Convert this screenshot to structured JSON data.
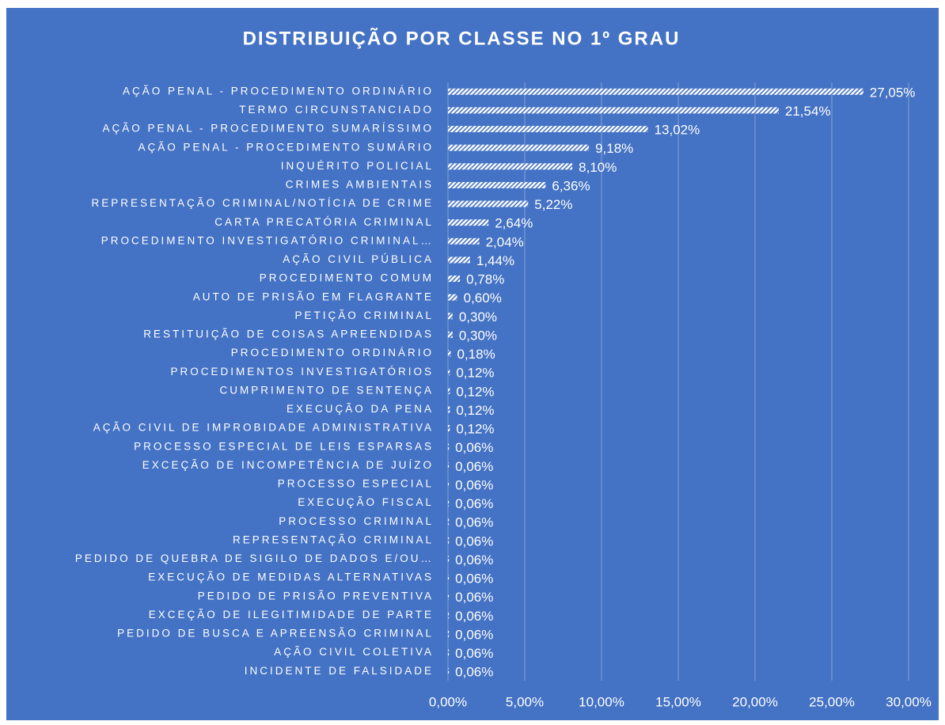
{
  "chart_data": {
    "type": "barh",
    "title": "DISTRIBUIÇÃO POR CLASSE NO 1º GRAU",
    "categories": [
      "AÇÃO PENAL - PROCEDIMENTO ORDINÁRIO",
      "TERMO CIRCUNSTANCIADO",
      "AÇÃO PENAL - PROCEDIMENTO SUMARÍSSIMO",
      "AÇÃO PENAL - PROCEDIMENTO SUMÁRIO",
      "INQUÉRITO POLICIAL",
      "CRIMES AMBIENTAIS",
      "REPRESENTAÇÃO CRIMINAL/NOTÍCIA DE CRIME",
      "CARTA PRECATÓRIA CRIMINAL",
      "PROCEDIMENTO INVESTIGATÓRIO CRIMINAL…",
      "AÇÃO CIVIL PÚBLICA",
      "PROCEDIMENTO COMUM",
      "AUTO DE PRISÃO EM FLAGRANTE",
      "PETIÇÃO CRIMINAL",
      "RESTITUIÇÃO DE COISAS APREENDIDAS",
      "PROCEDIMENTO ORDINÁRIO",
      "PROCEDIMENTOS INVESTIGATÓRIOS",
      "CUMPRIMENTO DE SENTENÇA",
      "EXECUÇÃO DA PENA",
      "AÇÃO CIVIL DE IMPROBIDADE ADMINISTRATIVA",
      "PROCESSO ESPECIAL DE LEIS ESPARSAS",
      "EXCEÇÃO DE INCOMPETÊNCIA DE JUÍZO",
      "PROCESSO ESPECIAL",
      "EXECUÇÃO FISCAL",
      "PROCESSO CRIMINAL",
      "REPRESENTAÇÃO CRIMINAL",
      "PEDIDO DE QUEBRA DE SIGILO DE DADOS E/OU…",
      "EXECUÇÃO DE MEDIDAS ALTERNATIVAS",
      "PEDIDO DE PRISÃO PREVENTIVA",
      "EXCEÇÃO DE ILEGITIMIDADE DE PARTE",
      "PEDIDO DE BUSCA E APREENSÃO CRIMINAL",
      "AÇÃO CIVIL COLETIVA",
      "INCIDENTE DE FALSIDADE"
    ],
    "values": [
      27.05,
      21.54,
      13.02,
      9.18,
      8.1,
      6.36,
      5.22,
      2.64,
      2.04,
      1.44,
      0.78,
      0.6,
      0.3,
      0.3,
      0.18,
      0.12,
      0.12,
      0.12,
      0.12,
      0.06,
      0.06,
      0.06,
      0.06,
      0.06,
      0.06,
      0.06,
      0.06,
      0.06,
      0.06,
      0.06,
      0.06,
      0.06
    ],
    "value_labels": [
      "27,05%",
      "21,54%",
      "13,02%",
      "9,18%",
      "8,10%",
      "6,36%",
      "5,22%",
      "2,64%",
      "2,04%",
      "1,44%",
      "0,78%",
      "0,60%",
      "0,30%",
      "0,30%",
      "0,18%",
      "0,12%",
      "0,12%",
      "0,12%",
      "0,12%",
      "0,06%",
      "0,06%",
      "0,06%",
      "0,06%",
      "0,06%",
      "0,06%",
      "0,06%",
      "0,06%",
      "0,06%",
      "0,06%",
      "0,06%",
      "0,06%",
      "0,06%"
    ],
    "color": "#ffffff",
    "xlim": [
      0,
      30
    ],
    "xticks": [
      {
        "value": 0,
        "label": "0,00%"
      },
      {
        "value": 5,
        "label": "5,00%"
      },
      {
        "value": 10,
        "label": "10,00%"
      },
      {
        "value": 15,
        "label": "15,00%"
      },
      {
        "value": 20,
        "label": "20,00%"
      },
      {
        "value": 25,
        "label": "25,00%"
      },
      {
        "value": 30,
        "label": "30,00%"
      }
    ],
    "grid": true
  }
}
